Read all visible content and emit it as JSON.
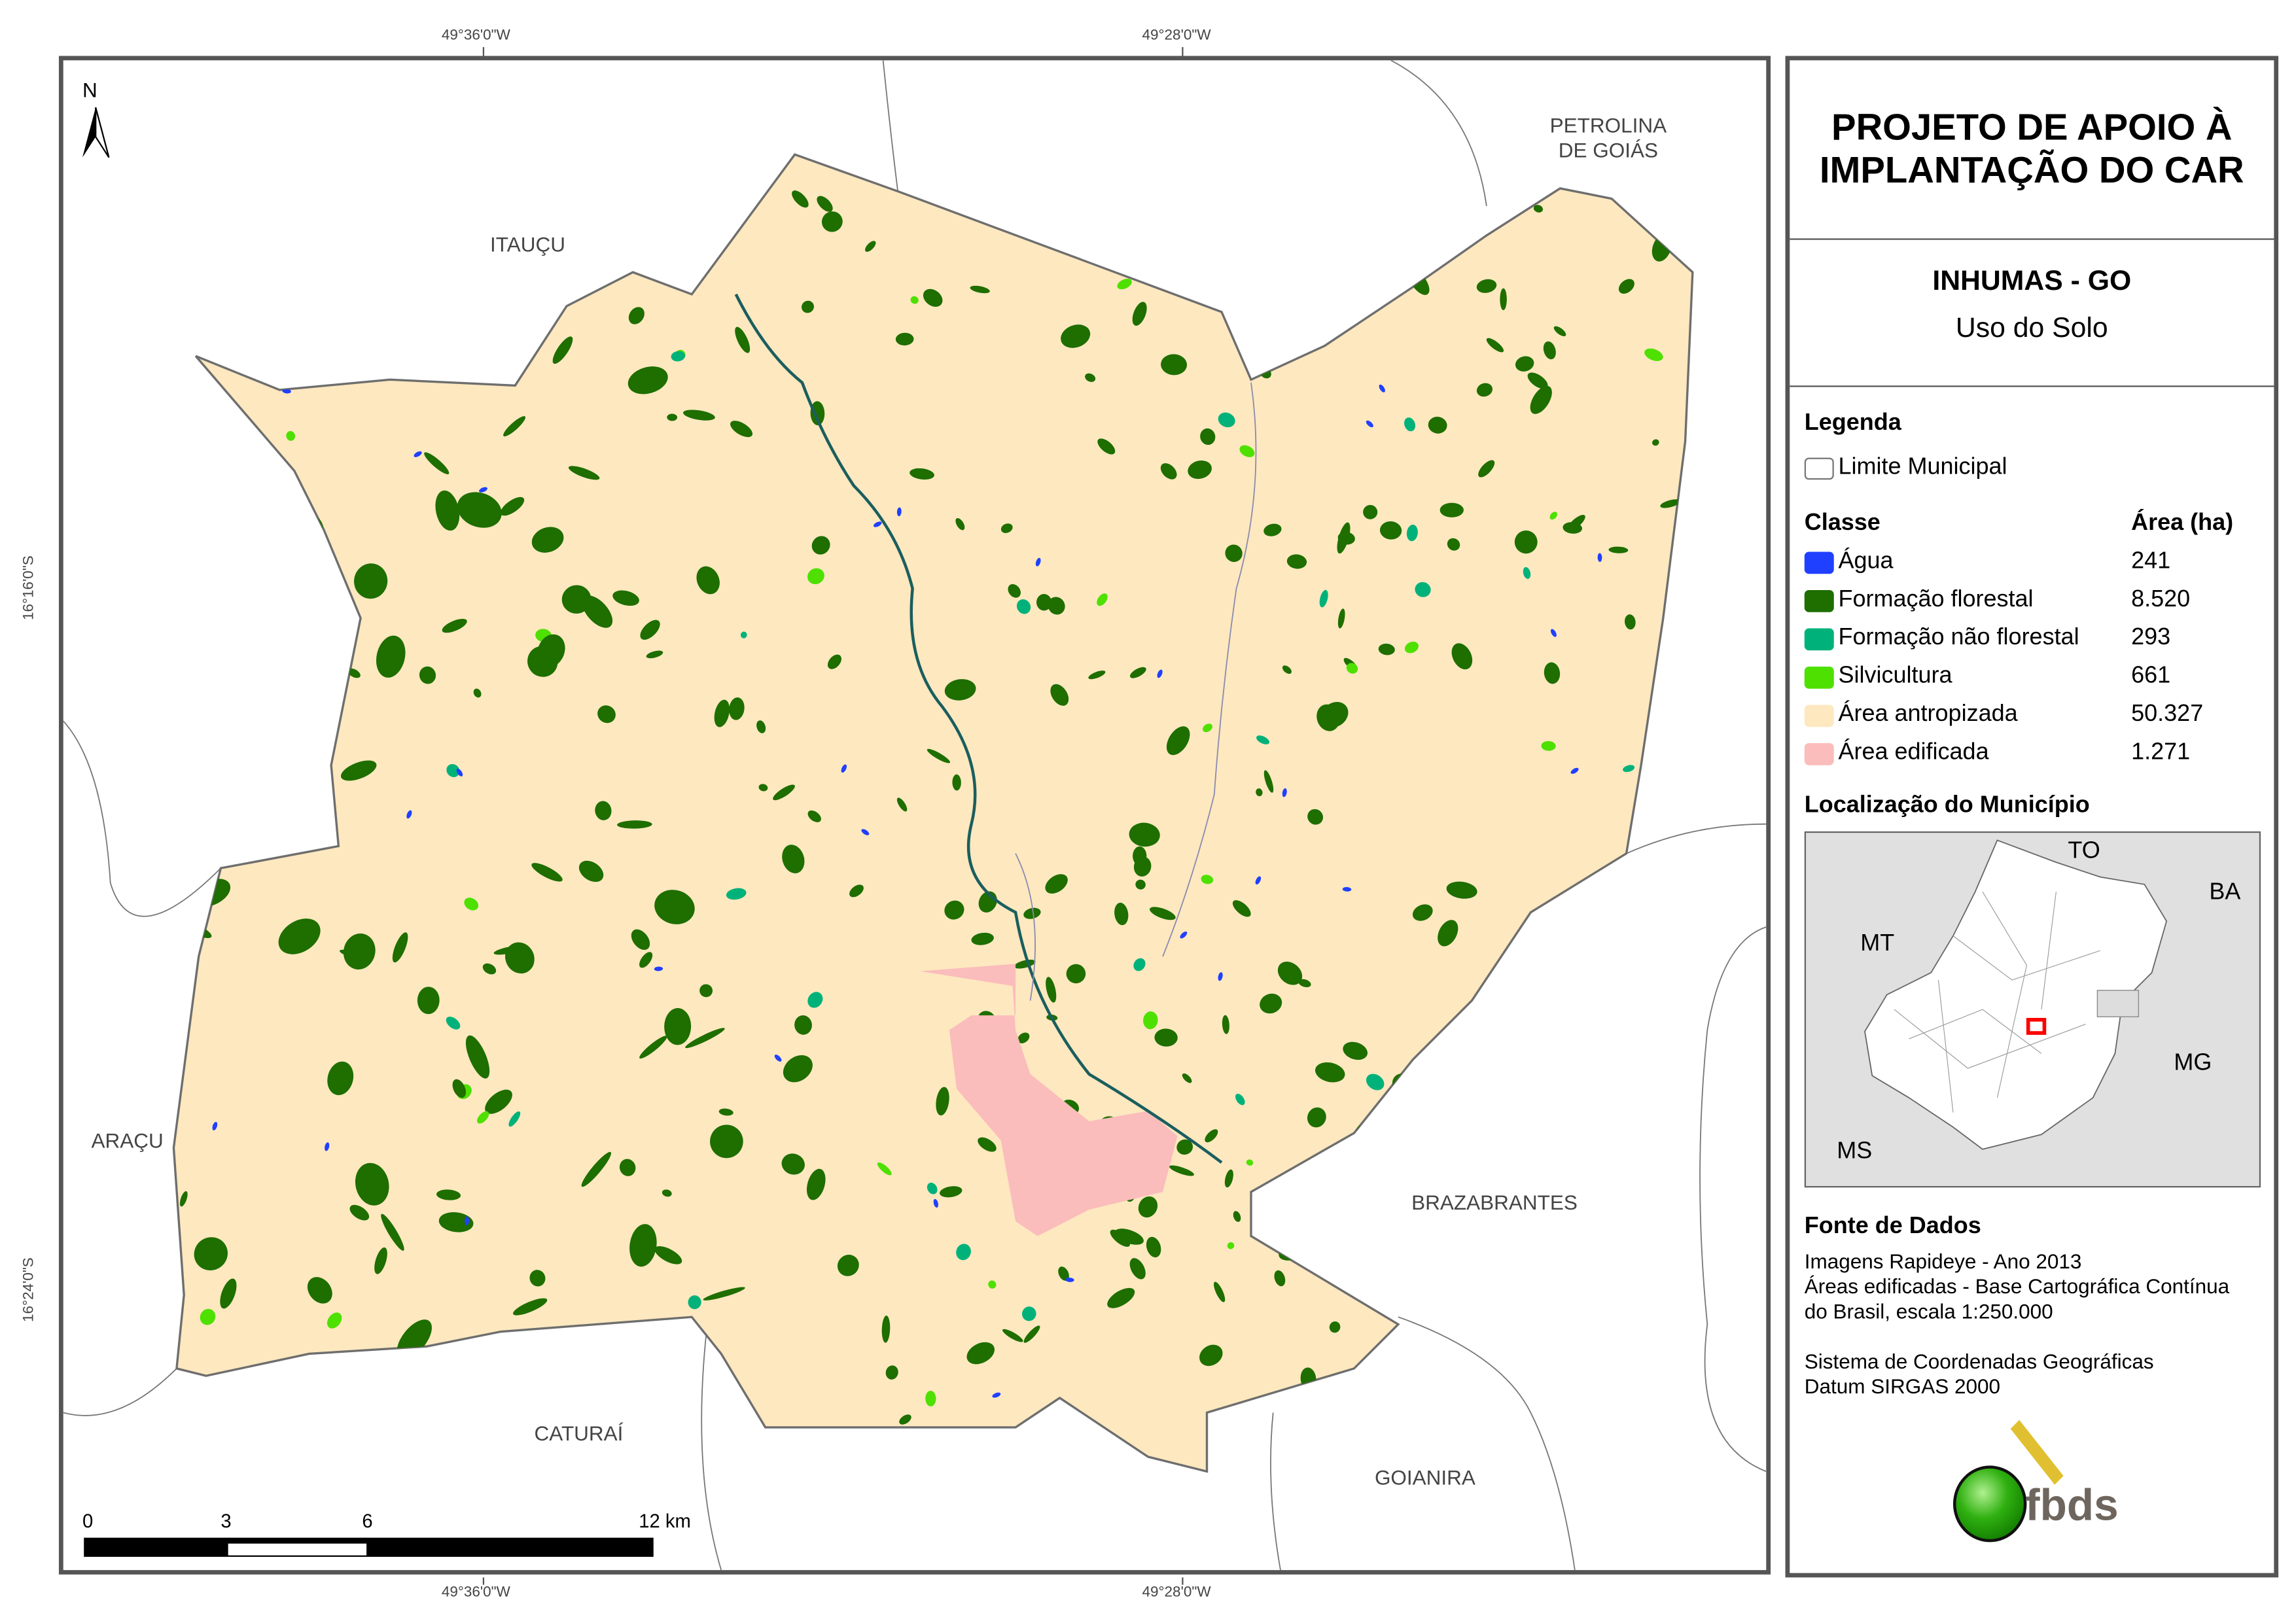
{
  "map": {
    "north_label": "N",
    "coordinates": {
      "top": [
        "49°36'0\"W",
        "49°28'0\"W"
      ],
      "bottom": [
        "49°36'0\"W",
        "49°28'0\"W"
      ],
      "left": [
        "16°16'0\"S",
        "16°24'0\"S"
      ]
    },
    "neighbors": {
      "petrolina": "PETROLINA\nDE GOIÁS",
      "itaucu": "ITAUÇU",
      "aracu": "ARAÇU",
      "brazabrantes": "BRAZABRANTES",
      "caturai": "CATURAÍ",
      "goianira": "GOIANIRA"
    },
    "scale_bar": {
      "labels": [
        "0",
        "3",
        "6",
        "12 km"
      ]
    },
    "colors": {
      "agua": "#2040ff",
      "formacao_florestal": "#1e6e00",
      "formacao_nao_florestal": "#00b27a",
      "silvicultura": "#4ee000",
      "area_antropizada": "#fde8c0",
      "area_edificada": "#fbbcbc",
      "limite": "#6e6e6e"
    }
  },
  "panel": {
    "title": "PROJETO DE APOIO À IMPLANTAÇÃO DO CAR",
    "municipality": "INHUMAS - GO",
    "subtitle": "Uso do Solo",
    "legend_title": "Legenda",
    "limite_label": "Limite Municipal",
    "class_header": "Classe",
    "area_header": "Área (ha)",
    "classes": [
      {
        "label": "Água",
        "area": "241",
        "color": "#2040ff"
      },
      {
        "label": "Formação florestal",
        "area": "8.520",
        "color": "#1e6e00"
      },
      {
        "label": "Formação não florestal",
        "area": "293",
        "color": "#00b27a"
      },
      {
        "label": "Silvicultura",
        "area": "661",
        "color": "#4ee000"
      },
      {
        "label": "Área antropizada",
        "area": "50.327",
        "color": "#fde8c0"
      },
      {
        "label": "Área edificada",
        "area": "1.271",
        "color": "#fbbcbc"
      }
    ],
    "location_title": "Localização do Município",
    "inset_labels": {
      "to": "TO",
      "ba": "BA",
      "mt": "MT",
      "mg": "MG",
      "ms": "MS"
    },
    "source_title": "Fonte de Dados",
    "source_lines": [
      "Imagens Rapideye - Ano 2013",
      "Áreas edificadas - Base Cartográfica Contínua",
      "do Brasil, escala 1:250.000"
    ],
    "crs_lines": [
      "Sistema de Coordenadas Geográficas",
      "Datum SIRGAS 2000"
    ],
    "logo_text": "fbds"
  }
}
